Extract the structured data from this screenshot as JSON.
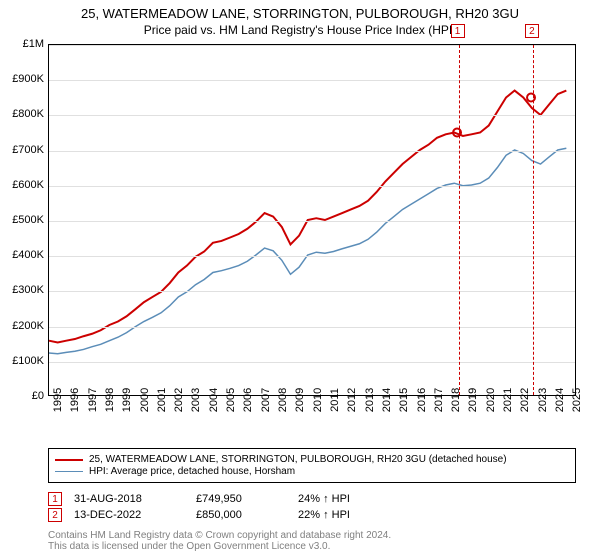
{
  "title": "25, WATERMEADOW LANE, STORRINGTON, PULBOROUGH, RH20 3GU",
  "subtitle": "Price paid vs. HM Land Registry's House Price Index (HPI)",
  "chart": {
    "type": "line",
    "background_color": "#ffffff",
    "border_color": "#000000",
    "grid_color": "#e0e0e0",
    "x_axis": {
      "min": 1995,
      "max": 2025.5,
      "tick_step": 1,
      "tick_labels": [
        "1995",
        "1996",
        "1997",
        "1998",
        "1999",
        "2000",
        "2001",
        "2002",
        "2003",
        "2004",
        "2005",
        "2006",
        "2007",
        "2008",
        "2009",
        "2010",
        "2011",
        "2012",
        "2013",
        "2014",
        "2015",
        "2016",
        "2017",
        "2018",
        "2019",
        "2020",
        "2021",
        "2022",
        "2023",
        "2024",
        "2025"
      ],
      "label_fontsize": 11,
      "label_rotation": -90
    },
    "y_axis": {
      "min": 0,
      "max": 1000000,
      "tick_step": 100000,
      "tick_labels": [
        "£0",
        "£100K",
        "£200K",
        "£300K",
        "£400K",
        "£500K",
        "£600K",
        "£700K",
        "£800K",
        "£900K",
        "£1M"
      ],
      "label_fontsize": 11
    },
    "series": [
      {
        "name": "25, WATERMEADOW LANE, STORRINGTON, PULBOROUGH, RH20 3GU (detached house)",
        "color": "#cc0000",
        "line_width": 2,
        "x": [
          1995,
          1995.5,
          1996,
          1996.5,
          1997,
          1997.5,
          1998,
          1998.5,
          1999,
          1999.5,
          2000,
          2000.5,
          2001,
          2001.5,
          2002,
          2002.5,
          2003,
          2003.5,
          2004,
          2004.5,
          2005,
          2005.5,
          2006,
          2006.5,
          2007,
          2007.5,
          2008,
          2008.5,
          2009,
          2009.5,
          2010,
          2010.5,
          2011,
          2011.5,
          2012,
          2012.5,
          2013,
          2013.5,
          2014,
          2014.5,
          2015,
          2015.5,
          2016,
          2016.5,
          2017,
          2017.5,
          2018,
          2018.5,
          2019,
          2019.5,
          2020,
          2020.5,
          2021,
          2021.5,
          2022,
          2022.5,
          2023,
          2023.5,
          2024,
          2024.5,
          2025
        ],
        "y": [
          155000,
          150000,
          155000,
          160000,
          168000,
          175000,
          185000,
          200000,
          210000,
          225000,
          245000,
          265000,
          280000,
          295000,
          320000,
          350000,
          370000,
          395000,
          410000,
          435000,
          440000,
          450000,
          460000,
          475000,
          495000,
          520000,
          510000,
          480000,
          430000,
          455000,
          500000,
          505000,
          500000,
          510000,
          520000,
          530000,
          540000,
          555000,
          580000,
          610000,
          635000,
          660000,
          680000,
          700000,
          715000,
          735000,
          745000,
          750000,
          740000,
          745000,
          750000,
          770000,
          810000,
          850000,
          870000,
          850000,
          820000,
          800000,
          830000,
          860000,
          870000
        ]
      },
      {
        "name": "HPI: Average price, detached house, Horsham",
        "color": "#5b8db8",
        "line_width": 1.5,
        "x": [
          1995,
          1995.5,
          1996,
          1996.5,
          1997,
          1997.5,
          1998,
          1998.5,
          1999,
          1999.5,
          2000,
          2000.5,
          2001,
          2001.5,
          2002,
          2002.5,
          2003,
          2003.5,
          2004,
          2004.5,
          2005,
          2005.5,
          2006,
          2006.5,
          2007,
          2007.5,
          2008,
          2008.5,
          2009,
          2009.5,
          2010,
          2010.5,
          2011,
          2011.5,
          2012,
          2012.5,
          2013,
          2013.5,
          2014,
          2014.5,
          2015,
          2015.5,
          2016,
          2016.5,
          2017,
          2017.5,
          2018,
          2018.5,
          2019,
          2019.5,
          2020,
          2020.5,
          2021,
          2021.5,
          2022,
          2022.5,
          2023,
          2023.5,
          2024,
          2024.5,
          2025
        ],
        "y": [
          120000,
          118000,
          122000,
          125000,
          130000,
          138000,
          145000,
          155000,
          165000,
          178000,
          195000,
          210000,
          222000,
          235000,
          255000,
          280000,
          295000,
          315000,
          330000,
          350000,
          355000,
          362000,
          370000,
          382000,
          400000,
          420000,
          412000,
          385000,
          345000,
          365000,
          400000,
          408000,
          405000,
          410000,
          418000,
          425000,
          432000,
          445000,
          465000,
          490000,
          510000,
          530000,
          545000,
          560000,
          575000,
          590000,
          600000,
          605000,
          598000,
          600000,
          605000,
          620000,
          650000,
          685000,
          700000,
          690000,
          670000,
          660000,
          680000,
          700000,
          705000
        ]
      }
    ],
    "events": [
      {
        "num": "1",
        "x": 2018.66,
        "color": "#cc0000",
        "date": "31-AUG-2018",
        "price": "£749,950",
        "pct": "24% ↑ HPI",
        "dot_y": 750000
      },
      {
        "num": "2",
        "x": 2022.95,
        "color": "#cc0000",
        "date": "13-DEC-2022",
        "price": "£850,000",
        "pct": "22% ↑ HPI",
        "dot_y": 850000
      }
    ]
  },
  "legend": {
    "border_color": "#000000",
    "fontsize": 10
  },
  "footer": {
    "line1": "Contains HM Land Registry data © Crown copyright and database right 2024.",
    "line2": "This data is licensed under the Open Government Licence v3.0.",
    "color": "#808080"
  }
}
